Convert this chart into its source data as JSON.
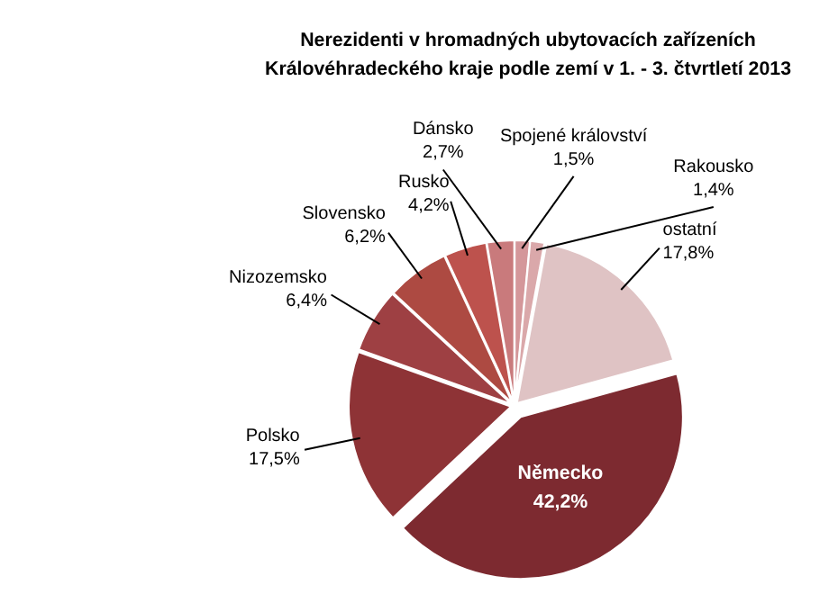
{
  "chart_data": {
    "type": "pie",
    "title": "Nerezidenti v hromadných ubytovacích zařízeních\nKrálovéhradeckého kraje podle zemí v 1. - 3. čtvrtletí 2013",
    "categories": [
      "Spojené království",
      "Rakousko",
      "ostatní",
      "Německo",
      "Polsko",
      "Nizozemsko",
      "Slovensko",
      "Rusko",
      "Dánsko"
    ],
    "values": [
      1.5,
      1.4,
      17.8,
      42.2,
      17.5,
      6.4,
      6.2,
      4.2,
      2.7
    ],
    "value_labels": [
      "1,5%",
      "1,4%",
      "17,8%",
      "42,2%",
      "17,5%",
      "6,4%",
      "6,2%",
      "4,2%",
      "2,7%"
    ],
    "colors": [
      "#d4979a",
      "#daa8aa",
      "#dfc3c4",
      "#7d2a30",
      "#8e3336",
      "#9e4043",
      "#ad4a42",
      "#bd524d",
      "#c97a7c"
    ]
  }
}
